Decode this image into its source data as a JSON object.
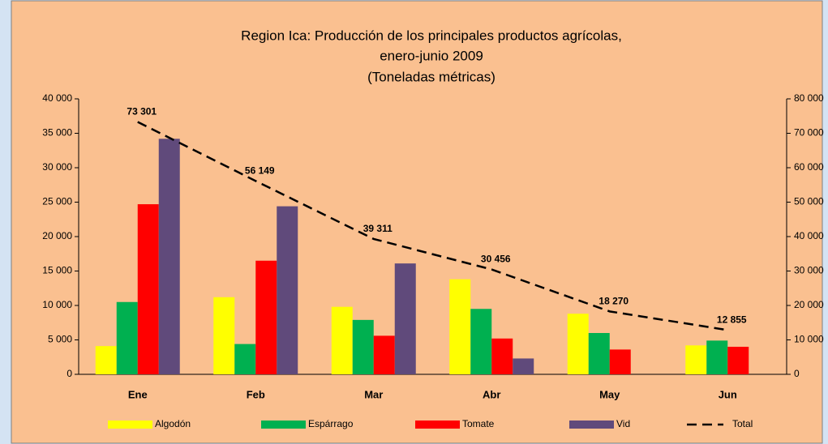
{
  "chart_data": {
    "type": "bar",
    "title": [
      "Region Ica: Producción de los principales productos agrícolas,",
      "enero-junio 2009",
      "(Toneladas métricas)"
    ],
    "categories": [
      "Ene",
      "Feb",
      "Mar",
      "Abr",
      "May",
      "Jun"
    ],
    "series": [
      {
        "name": "Algodón",
        "color": "#ffff00",
        "values": [
          4100,
          11200,
          9800,
          13800,
          8800,
          4200
        ]
      },
      {
        "name": "Espárrago",
        "color": "#00b050",
        "values": [
          10500,
          4400,
          7900,
          9500,
          6000,
          4900
        ]
      },
      {
        "name": "Tomate",
        "color": "#ff0000",
        "values": [
          24700,
          16500,
          5600,
          5200,
          3600,
          4000
        ]
      },
      {
        "name": "Vid",
        "color": "#604a7b",
        "values": [
          34200,
          24400,
          16100,
          2300,
          0,
          0
        ]
      },
      {
        "name": "Total",
        "type": "line",
        "axis": "y2",
        "color": "#000000",
        "dashed": true,
        "values": [
          73301,
          56149,
          39311,
          30456,
          18270,
          12855
        ],
        "value_labels": [
          "73 301",
          "56 149",
          "39 311",
          "30 456",
          "18 270",
          "12 855"
        ]
      }
    ],
    "ylim": [
      0,
      40000
    ],
    "yticks": [
      0,
      {
        "value": 5000,
        "label": "5 000"
      },
      {
        "value": 10000,
        "label": "10 000"
      },
      {
        "value": 15000,
        "label": "15 000"
      },
      {
        "value": 20000,
        "label": "20 000"
      },
      {
        "value": 25000,
        "label": "25 000"
      },
      {
        "value": 30000,
        "label": "30 000"
      },
      {
        "value": 35000,
        "label": "35 000"
      },
      {
        "value": 40000,
        "label": "40 000"
      }
    ],
    "y2lim": [
      0,
      80000
    ],
    "y2ticks": [
      0,
      {
        "value": 10000,
        "label": "10 000"
      },
      {
        "value": 20000,
        "label": "20 000"
      },
      {
        "value": 30000,
        "label": "30 000"
      },
      {
        "value": 40000,
        "label": "40 000"
      },
      {
        "value": 50000,
        "label": "50 000"
      },
      {
        "value": 60000,
        "label": "60 000"
      },
      {
        "value": 70000,
        "label": "70 000"
      },
      {
        "value": 80000,
        "label": "80 000"
      }
    ],
    "legend": "bottom"
  }
}
